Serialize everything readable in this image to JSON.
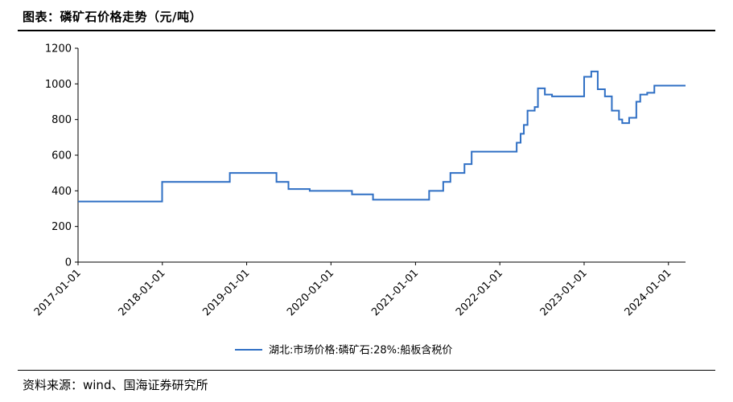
{
  "header": {
    "title": "图表：磷矿石价格走势（元/吨）"
  },
  "footer": {
    "source": "资料来源：wind、国海证券研究所"
  },
  "chart_data": {
    "type": "line",
    "title": "图表：磷矿石价格走势（元/吨）",
    "xlabel": "",
    "ylabel": "",
    "ylim": [
      0,
      1200
    ],
    "yticks": [
      0,
      200,
      400,
      600,
      800,
      1000,
      1200
    ],
    "xticks": [
      "2017-01-01",
      "2018-01-01",
      "2019-01-01",
      "2020-01-01",
      "2021-01-01",
      "2022-01-01",
      "2023-01-01",
      "2024-01-01"
    ],
    "xlim": [
      "2017-01-01",
      "2024-03-15"
    ],
    "grid": false,
    "legend_position": "bottom",
    "series": [
      {
        "name": "湖北:市场价格:磷矿石:28%:船板含税价",
        "color": "#2f6fc4",
        "step": true,
        "points": [
          [
            "2017-01-01",
            340
          ],
          [
            "2017-12-31",
            450
          ],
          [
            "2018-10-20",
            500
          ],
          [
            "2019-05-10",
            450
          ],
          [
            "2019-07-01",
            410
          ],
          [
            "2019-10-01",
            400
          ],
          [
            "2020-04-01",
            380
          ],
          [
            "2020-07-01",
            350
          ],
          [
            "2021-03-01",
            400
          ],
          [
            "2021-05-01",
            450
          ],
          [
            "2021-06-01",
            500
          ],
          [
            "2021-08-01",
            550
          ],
          [
            "2021-09-01",
            620
          ],
          [
            "2022-03-15",
            670
          ],
          [
            "2022-04-01",
            720
          ],
          [
            "2022-04-15",
            770
          ],
          [
            "2022-05-01",
            850
          ],
          [
            "2022-06-01",
            870
          ],
          [
            "2022-06-15",
            975
          ],
          [
            "2022-07-15",
            940
          ],
          [
            "2022-08-15",
            930
          ],
          [
            "2023-01-01",
            1040
          ],
          [
            "2023-02-01",
            1070
          ],
          [
            "2023-03-01",
            970
          ],
          [
            "2023-04-01",
            930
          ],
          [
            "2023-05-01",
            850
          ],
          [
            "2023-06-01",
            800
          ],
          [
            "2023-06-15",
            780
          ],
          [
            "2023-07-15",
            810
          ],
          [
            "2023-08-15",
            900
          ],
          [
            "2023-09-01",
            940
          ],
          [
            "2023-10-01",
            950
          ],
          [
            "2023-11-01",
            990
          ],
          [
            "2024-03-15",
            990
          ]
        ]
      }
    ]
  }
}
